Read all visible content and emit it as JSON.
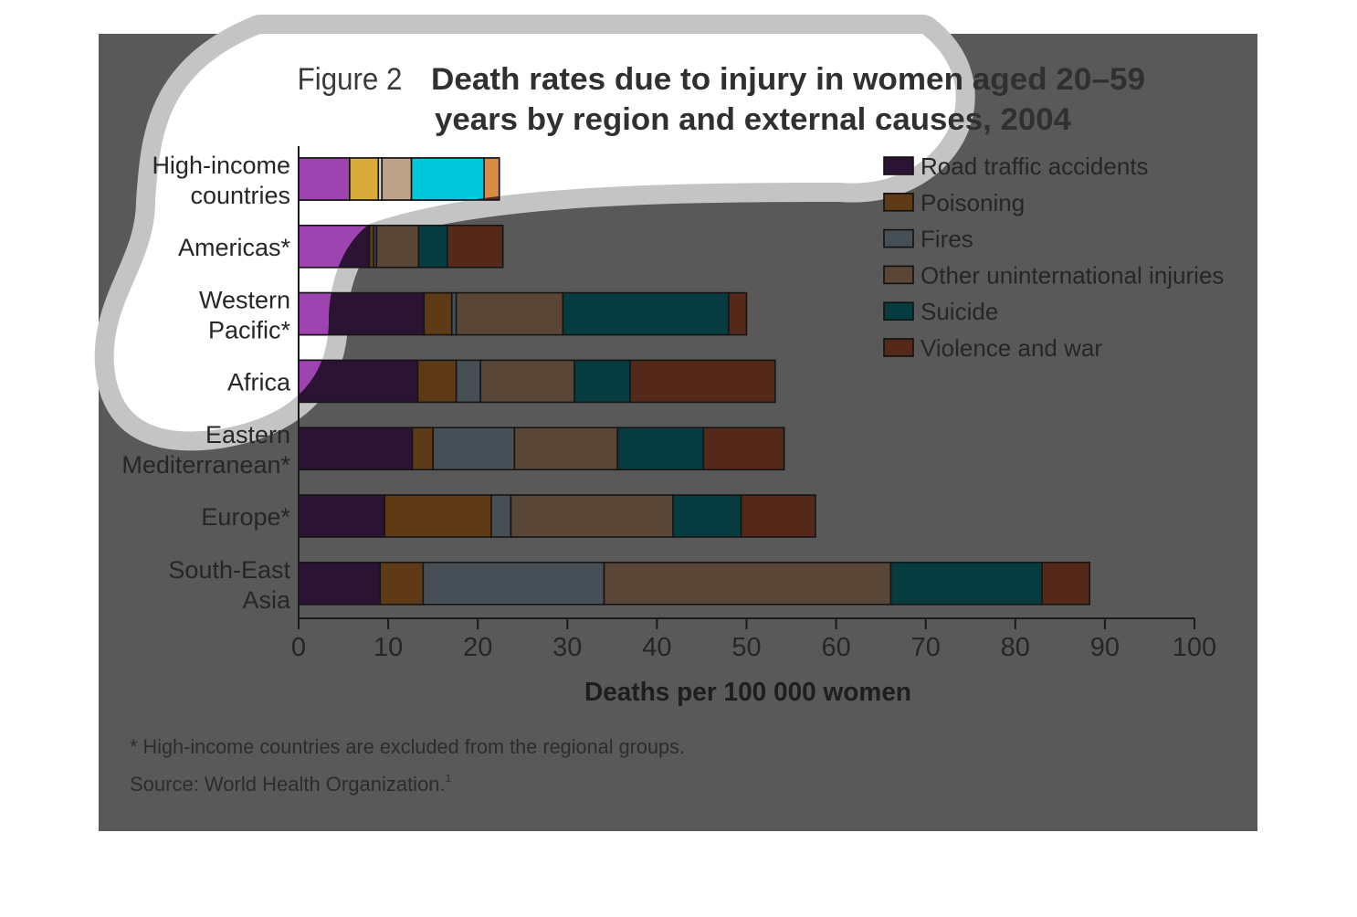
{
  "figure": {
    "label": "Figure 2",
    "title_line1": "Death rates due to injury in women aged 20–59",
    "title_line2": "years by region and external causes, 2004",
    "footnote": "* High-income countries are excluded from the regional groups.",
    "source": "Source: World Health Organization.",
    "source_ref": "1"
  },
  "chart_data": {
    "type": "bar",
    "orientation": "horizontal",
    "stacked": true,
    "title": "Death rates due to injury in women aged 20–59 years by region and external causes, 2004",
    "xlabel": "Deaths per 100 000 women",
    "ylabel": "",
    "xlim": [
      0,
      100
    ],
    "xticks": [
      "0",
      "10",
      "20",
      "30",
      "40",
      "50",
      "60",
      "70",
      "80",
      "90",
      "100"
    ],
    "grid": false,
    "legend_position": "top-right",
    "categories": [
      [
        "High-income",
        "countries"
      ],
      [
        "Americas*"
      ],
      [
        "Western",
        "Pacific*"
      ],
      [
        "Africa"
      ],
      [
        "Eastern",
        "Mediterranean*"
      ],
      [
        "Europe*"
      ],
      [
        "South-East",
        "Asia"
      ]
    ],
    "series": [
      {
        "name": "Road traffic accidents",
        "color": "#2b1433",
        "highlight_color": "#b84fcc",
        "values": [
          5.7,
          7.9,
          14.0,
          13.3,
          12.7,
          9.6,
          9.1
        ]
      },
      {
        "name": "Poisoning",
        "color": "#5e3a17",
        "highlight_color": "#f4c542",
        "values": [
          3.2,
          0.5,
          3.1,
          4.3,
          2.3,
          11.9,
          4.8
        ]
      },
      {
        "name": "Fires",
        "color": "#464e56",
        "highlight_color": "#fefaf0",
        "values": [
          0.4,
          0.3,
          0.5,
          2.7,
          9.1,
          2.2,
          20.2
        ]
      },
      {
        "name": "Other uninternational injuries",
        "color": "#5a4637",
        "highlight_color": "#d6b89a",
        "values": [
          3.3,
          4.7,
          11.9,
          10.5,
          11.5,
          18.1,
          32.0
        ]
      },
      {
        "name": "Suicide",
        "color": "#063c3f",
        "highlight_color": "#00e5ff",
        "values": [
          8.1,
          3.2,
          18.5,
          6.2,
          9.6,
          7.6,
          16.9
        ]
      },
      {
        "name": "Violence and war",
        "color": "#54291a",
        "highlight_color": "#f6a24c",
        "values": [
          1.7,
          6.2,
          2.0,
          16.2,
          9.0,
          8.3,
          5.3
        ]
      }
    ]
  }
}
